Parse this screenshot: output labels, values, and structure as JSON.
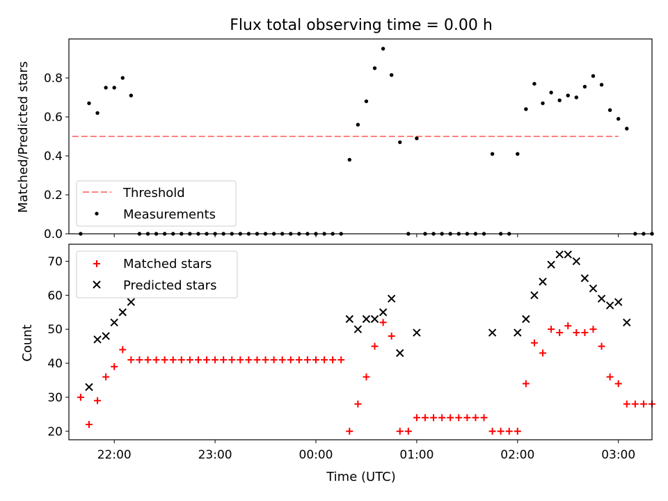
{
  "chart_data": [
    {
      "type": "scatter",
      "title": "Flux total observing time = 0.00 h",
      "xlabel": "",
      "ylabel": "Matched/Predicted stars",
      "xlim": [
        "21:33",
        "03:20"
      ],
      "ylim": [
        0,
        1.0
      ],
      "yticks": [
        "0.0",
        "0.2",
        "0.4",
        "0.6",
        "0.8"
      ],
      "xticks_labels_shown": false,
      "legend_position": "lower-left",
      "threshold": {
        "name": "Threshold",
        "value": 0.5,
        "x_range": [
          "21:35",
          "03:00"
        ],
        "color": "#ff7f7f",
        "style": "dashed"
      },
      "series": [
        {
          "name": "Measurements",
          "color": "#000000",
          "marker": "dot",
          "points": [
            [
              "21:40",
              0.0
            ],
            [
              "21:45",
              0.67
            ],
            [
              "21:50",
              0.62
            ],
            [
              "21:55",
              0.75
            ],
            [
              "22:00",
              0.75
            ],
            [
              "22:05",
              0.8
            ],
            [
              "22:10",
              0.71
            ],
            [
              "22:15",
              0.0
            ],
            [
              "22:20",
              0.0
            ],
            [
              "22:25",
              0.0
            ],
            [
              "22:30",
              0.0
            ],
            [
              "22:35",
              0.0
            ],
            [
              "22:40",
              0.0
            ],
            [
              "22:45",
              0.0
            ],
            [
              "22:50",
              0.0
            ],
            [
              "22:55",
              0.0
            ],
            [
              "23:00",
              0.0
            ],
            [
              "23:05",
              0.0
            ],
            [
              "23:10",
              0.0
            ],
            [
              "23:15",
              0.0
            ],
            [
              "23:20",
              0.0
            ],
            [
              "23:25",
              0.0
            ],
            [
              "23:30",
              0.0
            ],
            [
              "23:35",
              0.0
            ],
            [
              "23:40",
              0.0
            ],
            [
              "23:45",
              0.0
            ],
            [
              "23:50",
              0.0
            ],
            [
              "23:55",
              0.0
            ],
            [
              "00:00",
              0.0
            ],
            [
              "00:05",
              0.0
            ],
            [
              "00:10",
              0.0
            ],
            [
              "00:15",
              0.0
            ],
            [
              "00:20",
              0.38
            ],
            [
              "00:25",
              0.56
            ],
            [
              "00:30",
              0.68
            ],
            [
              "00:35",
              0.85
            ],
            [
              "00:40",
              0.95
            ],
            [
              "00:45",
              0.815
            ],
            [
              "00:50",
              0.47
            ],
            [
              "00:55",
              0.0
            ],
            [
              "01:00",
              0.49
            ],
            [
              "01:05",
              0.0
            ],
            [
              "01:10",
              0.0
            ],
            [
              "01:15",
              0.0
            ],
            [
              "01:20",
              0.0
            ],
            [
              "01:25",
              0.0
            ],
            [
              "01:30",
              0.0
            ],
            [
              "01:35",
              0.0
            ],
            [
              "01:40",
              0.0
            ],
            [
              "01:45",
              0.41
            ],
            [
              "01:50",
              0.0
            ],
            [
              "01:55",
              0.0
            ],
            [
              "02:00",
              0.41
            ],
            [
              "02:05",
              0.64
            ],
            [
              "02:10",
              0.77
            ],
            [
              "02:15",
              0.67
            ],
            [
              "02:20",
              0.725
            ],
            [
              "02:25",
              0.685
            ],
            [
              "02:30",
              0.71
            ],
            [
              "02:35",
              0.7
            ],
            [
              "02:40",
              0.755
            ],
            [
              "02:45",
              0.81
            ],
            [
              "02:50",
              0.765
            ],
            [
              "02:55",
              0.635
            ],
            [
              "03:00",
              0.59
            ],
            [
              "03:05",
              0.54
            ],
            [
              "03:10",
              0.0
            ],
            [
              "03:15",
              0.0
            ],
            [
              "03:20",
              0.0
            ]
          ]
        }
      ]
    },
    {
      "type": "scatter",
      "title": "",
      "xlabel": "Time (UTC)",
      "ylabel": "Count",
      "xlim": [
        "21:33",
        "03:20"
      ],
      "ylim": [
        17.5,
        75
      ],
      "yticks": [
        "20",
        "30",
        "40",
        "50",
        "60",
        "70"
      ],
      "xticks": [
        "22:00",
        "23:00",
        "00:00",
        "01:00",
        "02:00",
        "03:00"
      ],
      "legend_position": "upper-left",
      "series": [
        {
          "name": "Matched stars",
          "color": "#ff0000",
          "marker": "plus",
          "points": [
            [
              "21:40",
              30
            ],
            [
              "21:45",
              22
            ],
            [
              "21:50",
              29
            ],
            [
              "21:55",
              36
            ],
            [
              "22:00",
              39
            ],
            [
              "22:05",
              44
            ],
            [
              "22:10",
              41
            ],
            [
              "22:15",
              41
            ],
            [
              "22:20",
              41
            ],
            [
              "22:25",
              41
            ],
            [
              "22:30",
              41
            ],
            [
              "22:35",
              41
            ],
            [
              "22:40",
              41
            ],
            [
              "22:45",
              41
            ],
            [
              "22:50",
              41
            ],
            [
              "22:55",
              41
            ],
            [
              "23:00",
              41
            ],
            [
              "23:05",
              41
            ],
            [
              "23:10",
              41
            ],
            [
              "23:15",
              41
            ],
            [
              "23:20",
              41
            ],
            [
              "23:25",
              41
            ],
            [
              "23:30",
              41
            ],
            [
              "23:35",
              41
            ],
            [
              "23:40",
              41
            ],
            [
              "23:45",
              41
            ],
            [
              "23:50",
              41
            ],
            [
              "23:55",
              41
            ],
            [
              "00:00",
              41
            ],
            [
              "00:05",
              41
            ],
            [
              "00:10",
              41
            ],
            [
              "00:15",
              41
            ],
            [
              "00:20",
              20
            ],
            [
              "00:25",
              28
            ],
            [
              "00:30",
              36
            ],
            [
              "00:35",
              45
            ],
            [
              "00:40",
              52
            ],
            [
              "00:45",
              48
            ],
            [
              "00:50",
              20
            ],
            [
              "00:55",
              20
            ],
            [
              "01:00",
              24
            ],
            [
              "01:05",
              24
            ],
            [
              "01:10",
              24
            ],
            [
              "01:15",
              24
            ],
            [
              "01:20",
              24
            ],
            [
              "01:25",
              24
            ],
            [
              "01:30",
              24
            ],
            [
              "01:35",
              24
            ],
            [
              "01:40",
              24
            ],
            [
              "01:45",
              20
            ],
            [
              "01:50",
              20
            ],
            [
              "01:55",
              20
            ],
            [
              "02:00",
              20
            ],
            [
              "02:05",
              34
            ],
            [
              "02:10",
              46
            ],
            [
              "02:15",
              43
            ],
            [
              "02:20",
              50
            ],
            [
              "02:25",
              49
            ],
            [
              "02:30",
              51
            ],
            [
              "02:35",
              49
            ],
            [
              "02:40",
              49
            ],
            [
              "02:45",
              50
            ],
            [
              "02:50",
              45
            ],
            [
              "02:55",
              36
            ],
            [
              "03:00",
              34
            ],
            [
              "03:05",
              28
            ],
            [
              "03:10",
              28
            ],
            [
              "03:15",
              28
            ],
            [
              "03:20",
              28
            ]
          ]
        },
        {
          "name": "Predicted stars",
          "color": "#000000",
          "marker": "x",
          "points": [
            [
              "21:45",
              33
            ],
            [
              "21:50",
              47
            ],
            [
              "21:55",
              48
            ],
            [
              "22:00",
              52
            ],
            [
              "22:05",
              55
            ],
            [
              "22:10",
              58
            ],
            [
              "00:20",
              53
            ],
            [
              "00:25",
              50
            ],
            [
              "00:30",
              53
            ],
            [
              "00:35",
              53
            ],
            [
              "00:40",
              55
            ],
            [
              "00:45",
              59
            ],
            [
              "00:50",
              43
            ],
            [
              "01:00",
              49
            ],
            [
              "01:45",
              49
            ],
            [
              "02:00",
              49
            ],
            [
              "02:05",
              53
            ],
            [
              "02:10",
              60
            ],
            [
              "02:15",
              64
            ],
            [
              "02:20",
              69
            ],
            [
              "02:25",
              72
            ],
            [
              "02:30",
              72
            ],
            [
              "02:35",
              70
            ],
            [
              "02:40",
              65
            ],
            [
              "02:45",
              62
            ],
            [
              "02:50",
              59
            ],
            [
              "02:55",
              57
            ],
            [
              "03:00",
              58
            ],
            [
              "03:05",
              52
            ]
          ]
        }
      ]
    }
  ]
}
